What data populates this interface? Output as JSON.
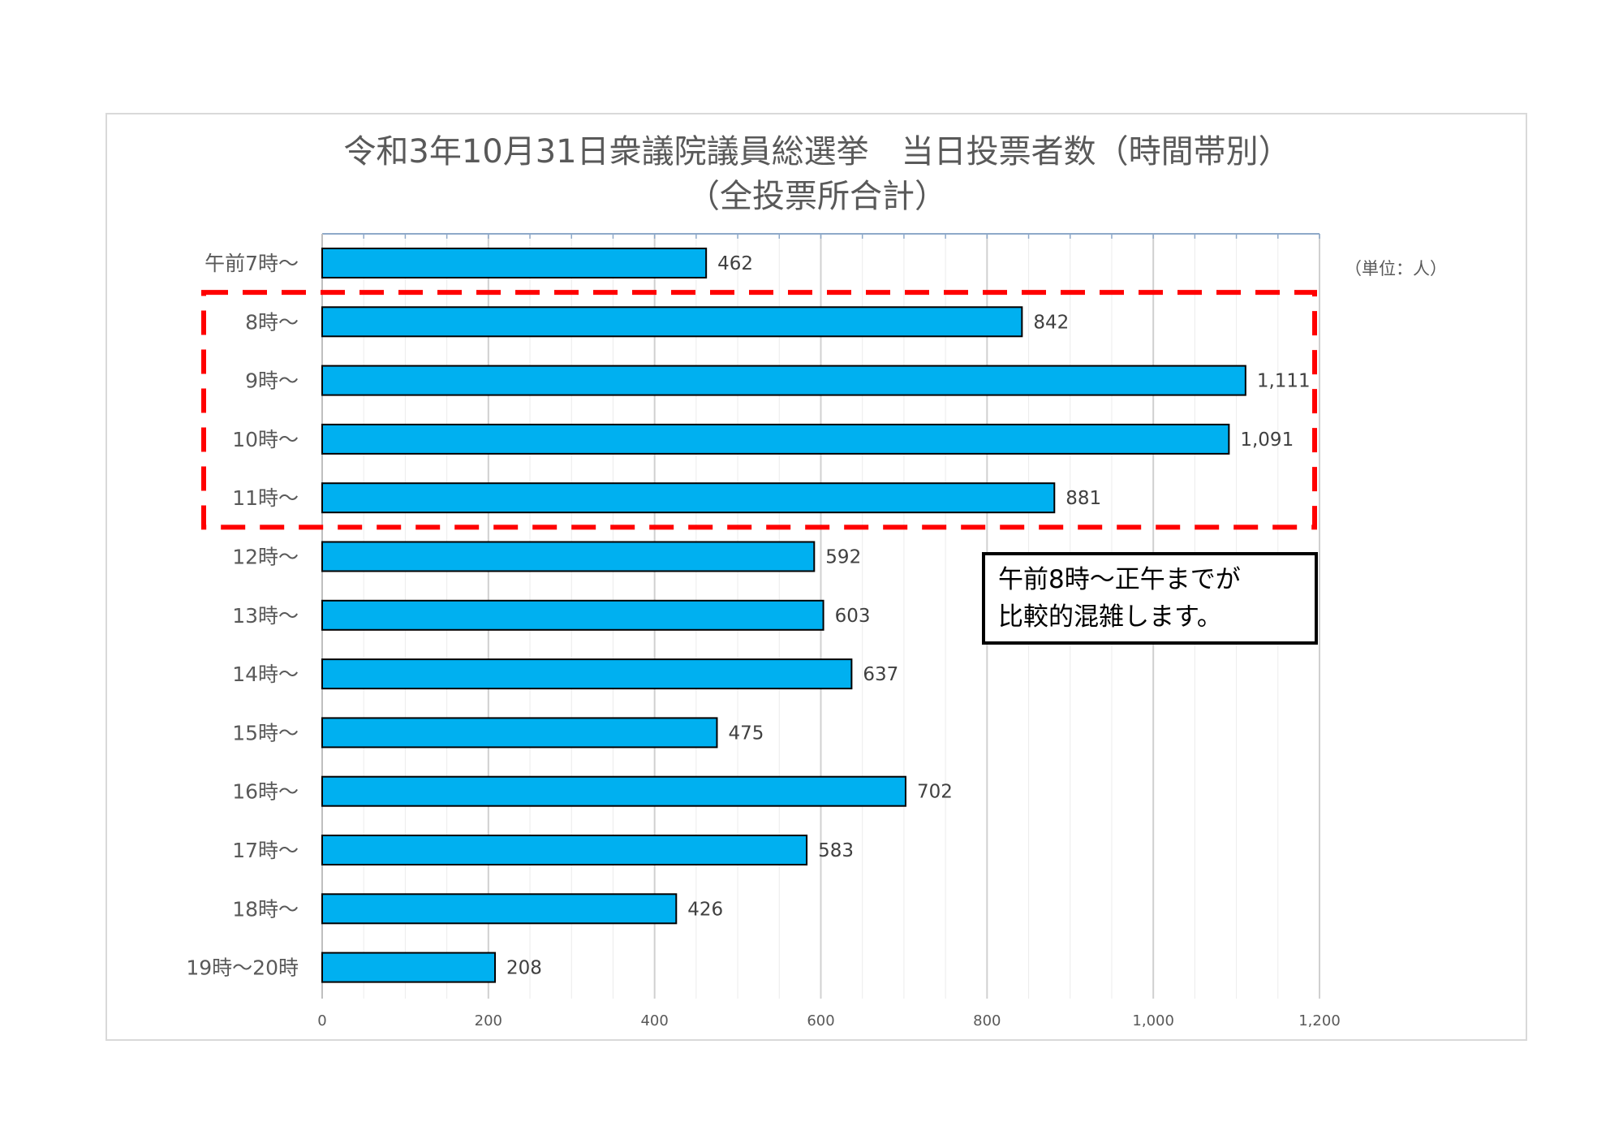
{
  "chart_data": {
    "type": "bar",
    "orientation": "horizontal",
    "title_line1": "令和3年10月31日衆議院議員総選挙　当日投票者数（時間帯別）",
    "title_line2": "（全投票所合計）",
    "unit_label": "（単位：人）",
    "categories": [
      "午前7時～",
      "8時～",
      "9時～",
      "10時～",
      "11時～",
      "12時～",
      "13時～",
      "14時～",
      "15時～",
      "16時～",
      "17時～",
      "18時～",
      "19時～20時"
    ],
    "values": [
      462,
      842,
      1111,
      1091,
      881,
      592,
      603,
      637,
      475,
      702,
      583,
      426,
      208
    ],
    "value_labels": [
      "462",
      "842",
      "1,111",
      "1,091",
      "881",
      "592",
      "603",
      "637",
      "475",
      "702",
      "583",
      "426",
      "208"
    ],
    "xlim": [
      0,
      1200
    ],
    "x_ticks": [
      0,
      200,
      400,
      600,
      800,
      1000,
      1200
    ],
    "x_tick_labels": [
      "0",
      "200",
      "400",
      "600",
      "800",
      "1,000",
      "1,200"
    ],
    "grid": true,
    "highlight_categories": [
      "8時～",
      "9時～",
      "10時～",
      "11時～"
    ],
    "note_lines": [
      "午前8時～正午までが",
      "比較的混雑します。"
    ],
    "colors": {
      "bar": "#00B0F0",
      "bar_border": "#000000",
      "highlight": "#FF0000"
    }
  }
}
